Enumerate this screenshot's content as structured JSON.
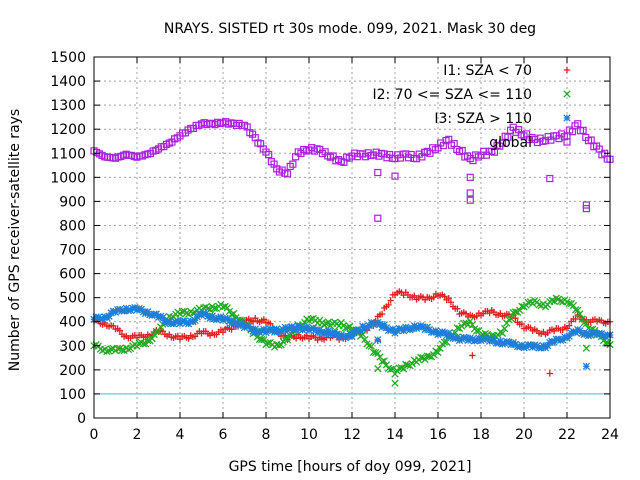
{
  "chart_data": {
    "type": "scatter",
    "title": "NRAYS. SISTED rt 30s mode. 099, 2021. Mask 30 deg",
    "xlabel": "GPS time [hours of doy 099, 2021]",
    "ylabel": "Number of GPS receiver-satellite rays",
    "xlim": [
      0,
      24
    ],
    "ylim": [
      0,
      1500
    ],
    "xticks": [
      0,
      2,
      4,
      6,
      8,
      10,
      12,
      14,
      16,
      18,
      20,
      22,
      24
    ],
    "yticks": [
      0,
      100,
      200,
      300,
      400,
      500,
      600,
      700,
      800,
      900,
      1000,
      1100,
      1200,
      1300,
      1400,
      1500
    ],
    "grid": true,
    "legend_position": "top-right",
    "threshold_line": {
      "y": 100,
      "color": "#33ccdd"
    },
    "series": [
      {
        "name": "I1: SZA < 70",
        "color": "#dd2020",
        "marker": "+",
        "points": [
          [
            0,
            400
          ],
          [
            0.5,
            395
          ],
          [
            1,
            370
          ],
          [
            1.5,
            340
          ],
          [
            2,
            335
          ],
          [
            2.5,
            345
          ],
          [
            3,
            360
          ],
          [
            3.5,
            345
          ],
          [
            4,
            330
          ],
          [
            4.5,
            340
          ],
          [
            5,
            355
          ],
          [
            5.5,
            350
          ],
          [
            6,
            360
          ],
          [
            6.5,
            380
          ],
          [
            7,
            400
          ],
          [
            7.5,
            410
          ],
          [
            8,
            400
          ],
          [
            8.5,
            360
          ],
          [
            9,
            330
          ],
          [
            9.5,
            340
          ],
          [
            10,
            335
          ],
          [
            10.5,
            330
          ],
          [
            11,
            340
          ],
          [
            11.5,
            330
          ],
          [
            12,
            345
          ],
          [
            12.5,
            360
          ],
          [
            13,
            390
          ],
          [
            13.5,
            450
          ],
          [
            14,
            520
          ],
          [
            14.5,
            515
          ],
          [
            15,
            500
          ],
          [
            15.5,
            495
          ],
          [
            16,
            515
          ],
          [
            16.5,
            490
          ],
          [
            17,
            440
          ],
          [
            17.5,
            420
          ],
          [
            18,
            435
          ],
          [
            18.5,
            440
          ],
          [
            19,
            430
          ],
          [
            19.5,
            420
          ],
          [
            20,
            380
          ],
          [
            20.5,
            360
          ],
          [
            21,
            355
          ],
          [
            21.5,
            365
          ],
          [
            22,
            380
          ],
          [
            22.5,
            420
          ],
          [
            23,
            405
          ],
          [
            23.5,
            400
          ],
          [
            24,
            400
          ]
        ],
        "outliers": [
          [
            13.2,
            320
          ],
          [
            17.6,
            260
          ],
          [
            21.2,
            185
          ]
        ]
      },
      {
        "name": "I2: 70 <= SZA <= 110",
        "color": "#22aa22",
        "marker": "x",
        "points": [
          [
            0,
            300
          ],
          [
            0.5,
            285
          ],
          [
            1,
            280
          ],
          [
            1.5,
            290
          ],
          [
            2,
            300
          ],
          [
            2.5,
            320
          ],
          [
            3,
            360
          ],
          [
            3.5,
            420
          ],
          [
            4,
            435
          ],
          [
            4.5,
            440
          ],
          [
            5,
            450
          ],
          [
            5.5,
            460
          ],
          [
            6,
            465
          ],
          [
            6.5,
            430
          ],
          [
            7,
            390
          ],
          [
            7.5,
            350
          ],
          [
            8,
            310
          ],
          [
            8.5,
            300
          ],
          [
            9,
            330
          ],
          [
            9.5,
            380
          ],
          [
            10,
            410
          ],
          [
            10.5,
            400
          ],
          [
            11,
            390
          ],
          [
            11.5,
            390
          ],
          [
            12,
            370
          ],
          [
            12.5,
            340
          ],
          [
            13,
            280
          ],
          [
            13.5,
            230
          ],
          [
            14,
            190
          ],
          [
            14.5,
            215
          ],
          [
            15,
            240
          ],
          [
            15.5,
            250
          ],
          [
            16,
            280
          ],
          [
            16.5,
            330
          ],
          [
            17,
            380
          ],
          [
            17.5,
            395
          ],
          [
            18,
            350
          ],
          [
            18.5,
            335
          ],
          [
            19,
            360
          ],
          [
            19.5,
            430
          ],
          [
            20,
            470
          ],
          [
            20.5,
            480
          ],
          [
            21,
            470
          ],
          [
            21.5,
            490
          ],
          [
            22,
            490
          ],
          [
            22.5,
            440
          ],
          [
            23,
            380
          ],
          [
            23.5,
            340
          ],
          [
            24,
            305
          ]
        ],
        "outliers": [
          [
            13.2,
            205
          ],
          [
            14,
            145
          ],
          [
            22.9,
            290
          ]
        ]
      },
      {
        "name": "I3: SZA > 110",
        "color": "#1f7fd6",
        "marker": "*",
        "points": [
          [
            0,
            410
          ],
          [
            0.5,
            420
          ],
          [
            1,
            440
          ],
          [
            1.5,
            455
          ],
          [
            2,
            450
          ],
          [
            2.5,
            440
          ],
          [
            3,
            420
          ],
          [
            3.5,
            400
          ],
          [
            4,
            395
          ],
          [
            4.5,
            400
          ],
          [
            5,
            430
          ],
          [
            5.5,
            420
          ],
          [
            6,
            410
          ],
          [
            6.5,
            400
          ],
          [
            7,
            380
          ],
          [
            7.5,
            365
          ],
          [
            8,
            360
          ],
          [
            8.5,
            365
          ],
          [
            9,
            370
          ],
          [
            9.5,
            375
          ],
          [
            10,
            370
          ],
          [
            10.5,
            360
          ],
          [
            11,
            355
          ],
          [
            11.5,
            340
          ],
          [
            12,
            345
          ],
          [
            12.5,
            375
          ],
          [
            13,
            395
          ],
          [
            13.5,
            380
          ],
          [
            14,
            360
          ],
          [
            14.5,
            370
          ],
          [
            15,
            380
          ],
          [
            15.5,
            370
          ],
          [
            16,
            355
          ],
          [
            16.5,
            345
          ],
          [
            17,
            330
          ],
          [
            17.5,
            325
          ],
          [
            18,
            330
          ],
          [
            18.5,
            320
          ],
          [
            19,
            315
          ],
          [
            19.5,
            305
          ],
          [
            20,
            300
          ],
          [
            20.5,
            295
          ],
          [
            21,
            300
          ],
          [
            21.5,
            320
          ],
          [
            22,
            340
          ],
          [
            22.5,
            360
          ],
          [
            23,
            350
          ],
          [
            23.5,
            345
          ],
          [
            24,
            345
          ]
        ],
        "outliers": [
          [
            13.2,
            325
          ],
          [
            22.9,
            215
          ]
        ]
      },
      {
        "name": "global",
        "color": "#aa22dd",
        "marker": "square",
        "points": [
          [
            0,
            1110
          ],
          [
            0.5,
            1085
          ],
          [
            1,
            1080
          ],
          [
            1.5,
            1095
          ],
          [
            2,
            1085
          ],
          [
            2.5,
            1095
          ],
          [
            3,
            1120
          ],
          [
            3.5,
            1140
          ],
          [
            4,
            1175
          ],
          [
            4.5,
            1200
          ],
          [
            5,
            1225
          ],
          [
            5.5,
            1220
          ],
          [
            6,
            1230
          ],
          [
            6.5,
            1220
          ],
          [
            7,
            1220
          ],
          [
            7.5,
            1160
          ],
          [
            8,
            1110
          ],
          [
            8.5,
            1030
          ],
          [
            9,
            1020
          ],
          [
            9.5,
            1100
          ],
          [
            10,
            1120
          ],
          [
            10.5,
            1110
          ],
          [
            11,
            1090
          ],
          [
            11.5,
            1060
          ],
          [
            12,
            1095
          ],
          [
            12.5,
            1090
          ],
          [
            13,
            1100
          ],
          [
            13.5,
            1090
          ],
          [
            14,
            1085
          ],
          [
            14.5,
            1090
          ],
          [
            15,
            1085
          ],
          [
            15.5,
            1100
          ],
          [
            16,
            1130
          ],
          [
            16.5,
            1150
          ],
          [
            17,
            1115
          ],
          [
            17.5,
            1070
          ],
          [
            18,
            1100
          ],
          [
            18.5,
            1100
          ],
          [
            19,
            1150
          ],
          [
            19.5,
            1200
          ],
          [
            20,
            1180
          ],
          [
            20.5,
            1150
          ],
          [
            21,
            1160
          ],
          [
            21.5,
            1165
          ],
          [
            22,
            1180
          ],
          [
            22.5,
            1215
          ],
          [
            23,
            1160
          ],
          [
            23.5,
            1110
          ],
          [
            24,
            1075
          ]
        ],
        "outliers": [
          [
            13.2,
            1020
          ],
          [
            13.2,
            830
          ],
          [
            14,
            1005
          ],
          [
            17.5,
            1000
          ],
          [
            17.5,
            935
          ],
          [
            17.5,
            905
          ],
          [
            21.2,
            995
          ],
          [
            22.9,
            885
          ],
          [
            22.9,
            870
          ]
        ]
      }
    ]
  }
}
